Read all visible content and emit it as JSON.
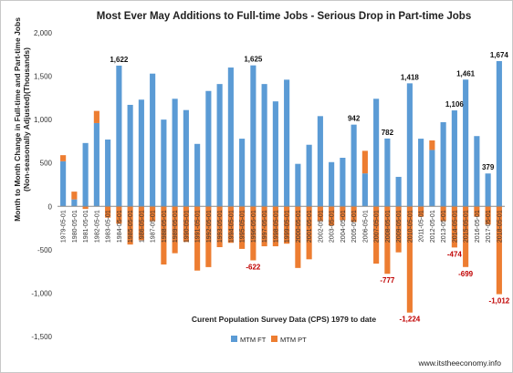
{
  "chart_data": {
    "type": "bar",
    "title": "Most Ever May Additions to Full-time Jobs - Serious Drop in Part-time Jobs",
    "ylabel_line1": "Month to Month Change in Full-time and Part-time Jobs",
    "ylabel_line2": "(Non-seasonally Adjusted)(Thousands)",
    "xlabel": "Curent Population Survey Data (CPS) 1979 to date",
    "ylim": [
      -1500,
      2000
    ],
    "yticks": [
      -1500,
      -1000,
      -500,
      0,
      500,
      1000,
      1500,
      2000
    ],
    "ytick_labels": [
      "-1,500",
      "-1,000",
      "-500",
      "0",
      "500",
      "1,000",
      "1,500",
      "2,000"
    ],
    "grid": false,
    "legend_position": "bottom-center",
    "categories": [
      "1979-05-01",
      "1980-05-01",
      "1981-05-01",
      "1982-05-01",
      "1983-05-01",
      "1984-05-01",
      "1985-05-01",
      "1986-05-01",
      "1987-05-01",
      "1988-05-01",
      "1989-05-01",
      "1990-05-01",
      "1991-05-01",
      "1992-05-01",
      "1993-05-01",
      "1994-05-01",
      "1995-05-01",
      "1996-05-01",
      "1997-05-01",
      "1998-05-01",
      "1999-05-01",
      "2000-05-01",
      "2001-05-01",
      "2002-05-01",
      "2003-05-01",
      "2004-05-01",
      "2005-05-01",
      "2006-05-01",
      "2007-05-01",
      "2008-05-01",
      "2009-05-01",
      "2010-05-01",
      "2011-05-01",
      "2012-05-01",
      "2013-05-01",
      "2014-05-01",
      "2015-05-01",
      "2016-05-01",
      "2017-05-01",
      "2018-05-01"
    ],
    "series": [
      {
        "name": "MTM FT",
        "color": "#5b9bd5",
        "values": [
          520,
          80,
          730,
          960,
          770,
          1622,
          1170,
          1230,
          1530,
          1000,
          1240,
          1110,
          720,
          1330,
          1410,
          1600,
          780,
          1625,
          1410,
          1210,
          1460,
          490,
          710,
          1040,
          510,
          560,
          942,
          380,
          1240,
          782,
          340,
          1418,
          780,
          650,
          970,
          1106,
          1461,
          810,
          379,
          1674
        ]
      },
      {
        "name": "MTM PT",
        "color": "#ed7d31",
        "values": [
          70,
          90,
          -30,
          140,
          -130,
          -200,
          -440,
          -390,
          -170,
          -670,
          -540,
          -410,
          -740,
          -700,
          -470,
          -420,
          -490,
          -622,
          -460,
          -460,
          -430,
          -710,
          -610,
          -170,
          -220,
          -160,
          -180,
          260,
          -660,
          -777,
          -530,
          -1224,
          -120,
          110,
          -170,
          -474,
          -699,
          -120,
          -210,
          -1012
        ]
      }
    ],
    "data_labels": [
      {
        "series": "MTM FT",
        "category": "1984-05-01",
        "text": "1,622"
      },
      {
        "series": "MTM FT",
        "category": "1996-05-01",
        "text": "1,625"
      },
      {
        "series": "MTM FT",
        "category": "2005-05-01",
        "text": "942"
      },
      {
        "series": "MTM FT",
        "category": "2008-05-01",
        "text": "782"
      },
      {
        "series": "MTM FT",
        "category": "2010-05-01",
        "text": "1,418"
      },
      {
        "series": "MTM FT",
        "category": "2014-05-01",
        "text": "1,106"
      },
      {
        "series": "MTM FT",
        "category": "2015-05-01",
        "text": "1,461"
      },
      {
        "series": "MTM FT",
        "category": "2017-05-01",
        "text": "379"
      },
      {
        "series": "MTM FT",
        "category": "2018-05-01",
        "text": "1,674"
      },
      {
        "series": "MTM PT",
        "category": "1996-05-01",
        "text": "-622"
      },
      {
        "series": "MTM PT",
        "category": "2008-05-01",
        "text": "-777"
      },
      {
        "series": "MTM PT",
        "category": "2010-05-01",
        "text": "-1,224"
      },
      {
        "series": "MTM PT",
        "category": "2014-05-01",
        "text": "-474"
      },
      {
        "series": "MTM PT",
        "category": "2015-05-01",
        "text": "-699"
      },
      {
        "series": "MTM PT",
        "category": "2018-05-01",
        "text": "-1,012"
      }
    ]
  },
  "source_url": "www.itstheeconomy.info"
}
